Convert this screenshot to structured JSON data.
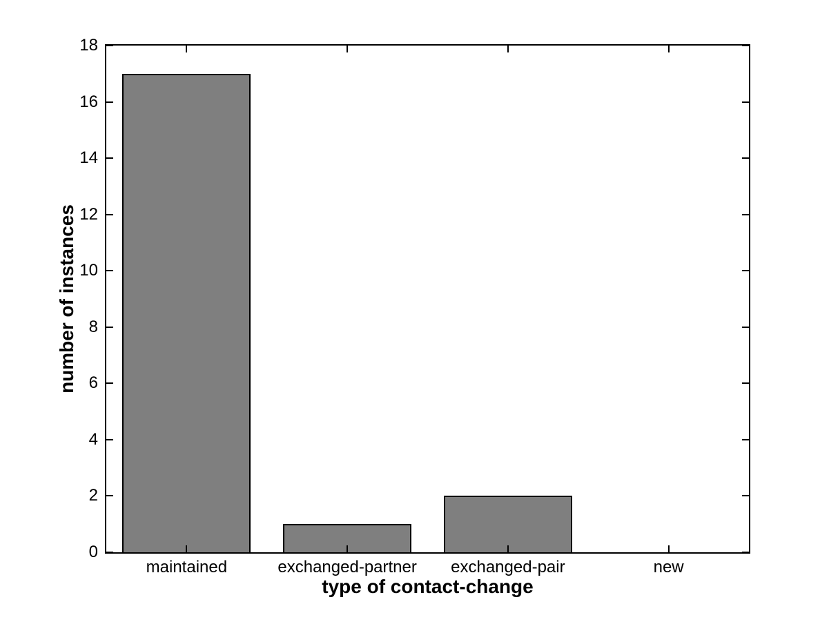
{
  "chart_data": {
    "type": "bar",
    "categories": [
      "maintained",
      "exchanged-partner",
      "exchanged-pair",
      "new"
    ],
    "values": [
      17,
      1,
      2,
      0
    ],
    "xlabel": "type of contact-change",
    "ylabel": "number of instances",
    "ylim": [
      0,
      18
    ],
    "yticks": [
      0,
      2,
      4,
      6,
      8,
      10,
      12,
      14,
      16,
      18
    ],
    "bar_color": "#7f7f7f",
    "bar_edge_color": "#000000",
    "axis_color": "#000000",
    "background_color": "#ffffff",
    "bar_width_fraction": 0.8,
    "grid": false,
    "tick_direction": "in",
    "box": true
  }
}
